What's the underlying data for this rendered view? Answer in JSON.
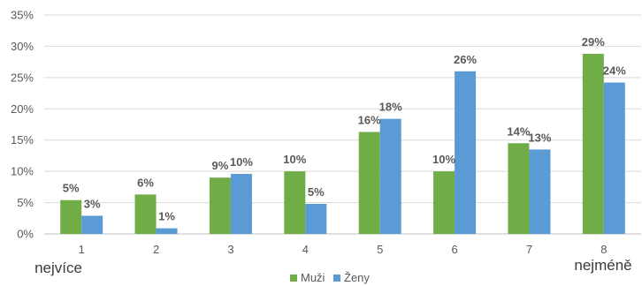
{
  "chart_data": {
    "type": "bar",
    "categories": [
      "1",
      "2",
      "3",
      "4",
      "5",
      "6",
      "7",
      "8"
    ],
    "series": [
      {
        "name": "Muži",
        "values": [
          5,
          6,
          9,
          10,
          16,
          10,
          14,
          29
        ],
        "labels": [
          "5%",
          "6%",
          "9%",
          "10%",
          "16%",
          "10%",
          "14%",
          "29%"
        ]
      },
      {
        "name": "Ženy",
        "values": [
          3,
          1,
          10,
          5,
          18,
          26,
          13,
          24
        ],
        "labels": [
          "3%",
          "1%",
          "10%",
          "5%",
          "18%",
          "26%",
          "13%",
          "24%"
        ]
      }
    ],
    "plotted_values": [
      [
        5.4,
        6.3,
        9.0,
        10.0,
        16.3,
        10.0,
        14.5,
        28.8
      ],
      [
        2.9,
        0.9,
        9.6,
        4.8,
        18.4,
        26.0,
        13.5,
        24.2
      ]
    ],
    "ylim": [
      0,
      35
    ],
    "yticks": [
      0,
      5,
      10,
      15,
      20,
      25,
      30,
      35
    ],
    "ytick_labels": [
      "0%",
      "5%",
      "10%",
      "15%",
      "20%",
      "25%",
      "30%",
      "35%"
    ],
    "grid": true,
    "legend": "bottom-center",
    "first_category_note": "nejvíce",
    "last_category_note": "nejméně",
    "colors": {
      "Muži": "#70ad47",
      "Ženy": "#5b9bd5",
      "grid": "#d9d9d9",
      "axis": "#bfbfbf"
    }
  }
}
